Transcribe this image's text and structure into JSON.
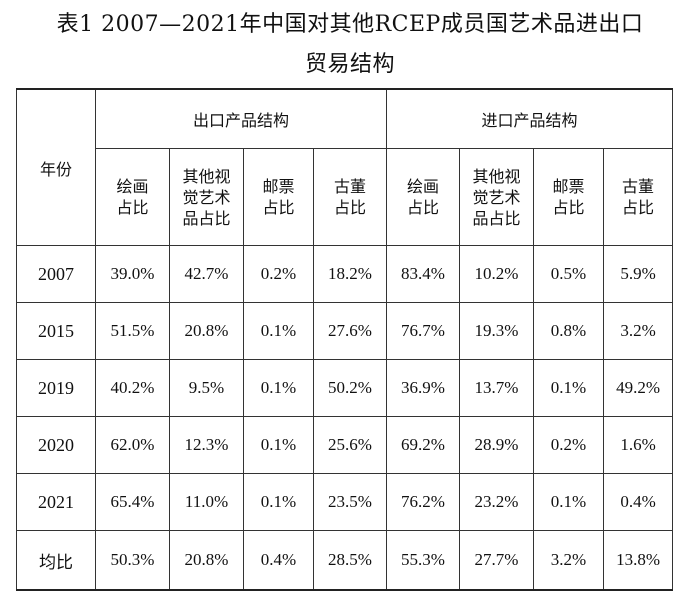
{
  "title": {
    "line1": "表1 2007—2021年中国对其他RCEP成员国艺术品进出口",
    "line2": "贸易结构"
  },
  "table": {
    "year_header": "年份",
    "export_header": "出口产品结构",
    "import_header": "进口产品结构",
    "sub_headers": [
      "绘画占比",
      "其他视觉艺术品占比",
      "邮票占比",
      "古董占比"
    ],
    "rows": [
      {
        "year": "2007",
        "export": [
          "39.0%",
          "42.7%",
          "0.2%",
          "18.2%"
        ],
        "import": [
          "83.4%",
          "10.2%",
          "0.5%",
          "5.9%"
        ]
      },
      {
        "year": "2015",
        "export": [
          "51.5%",
          "20.8%",
          "0.1%",
          "27.6%"
        ],
        "import": [
          "76.7%",
          "19.3%",
          "0.8%",
          "3.2%"
        ]
      },
      {
        "year": "2019",
        "export": [
          "40.2%",
          "9.5%",
          "0.1%",
          "50.2%"
        ],
        "import": [
          "36.9%",
          "13.7%",
          "0.1%",
          "49.2%"
        ]
      },
      {
        "year": "2020",
        "export": [
          "62.0%",
          "12.3%",
          "0.1%",
          "25.6%"
        ],
        "import": [
          "69.2%",
          "28.9%",
          "0.2%",
          "1.6%"
        ]
      },
      {
        "year": "2021",
        "export": [
          "65.4%",
          "11.0%",
          "0.1%",
          "23.5%"
        ],
        "import": [
          "76.2%",
          "23.2%",
          "0.1%",
          "0.4%"
        ]
      },
      {
        "year": "均比",
        "export": [
          "50.3%",
          "20.8%",
          "0.4%",
          "28.5%"
        ],
        "import": [
          "55.3%",
          "27.7%",
          "3.2%",
          "13.8%"
        ]
      }
    ]
  }
}
